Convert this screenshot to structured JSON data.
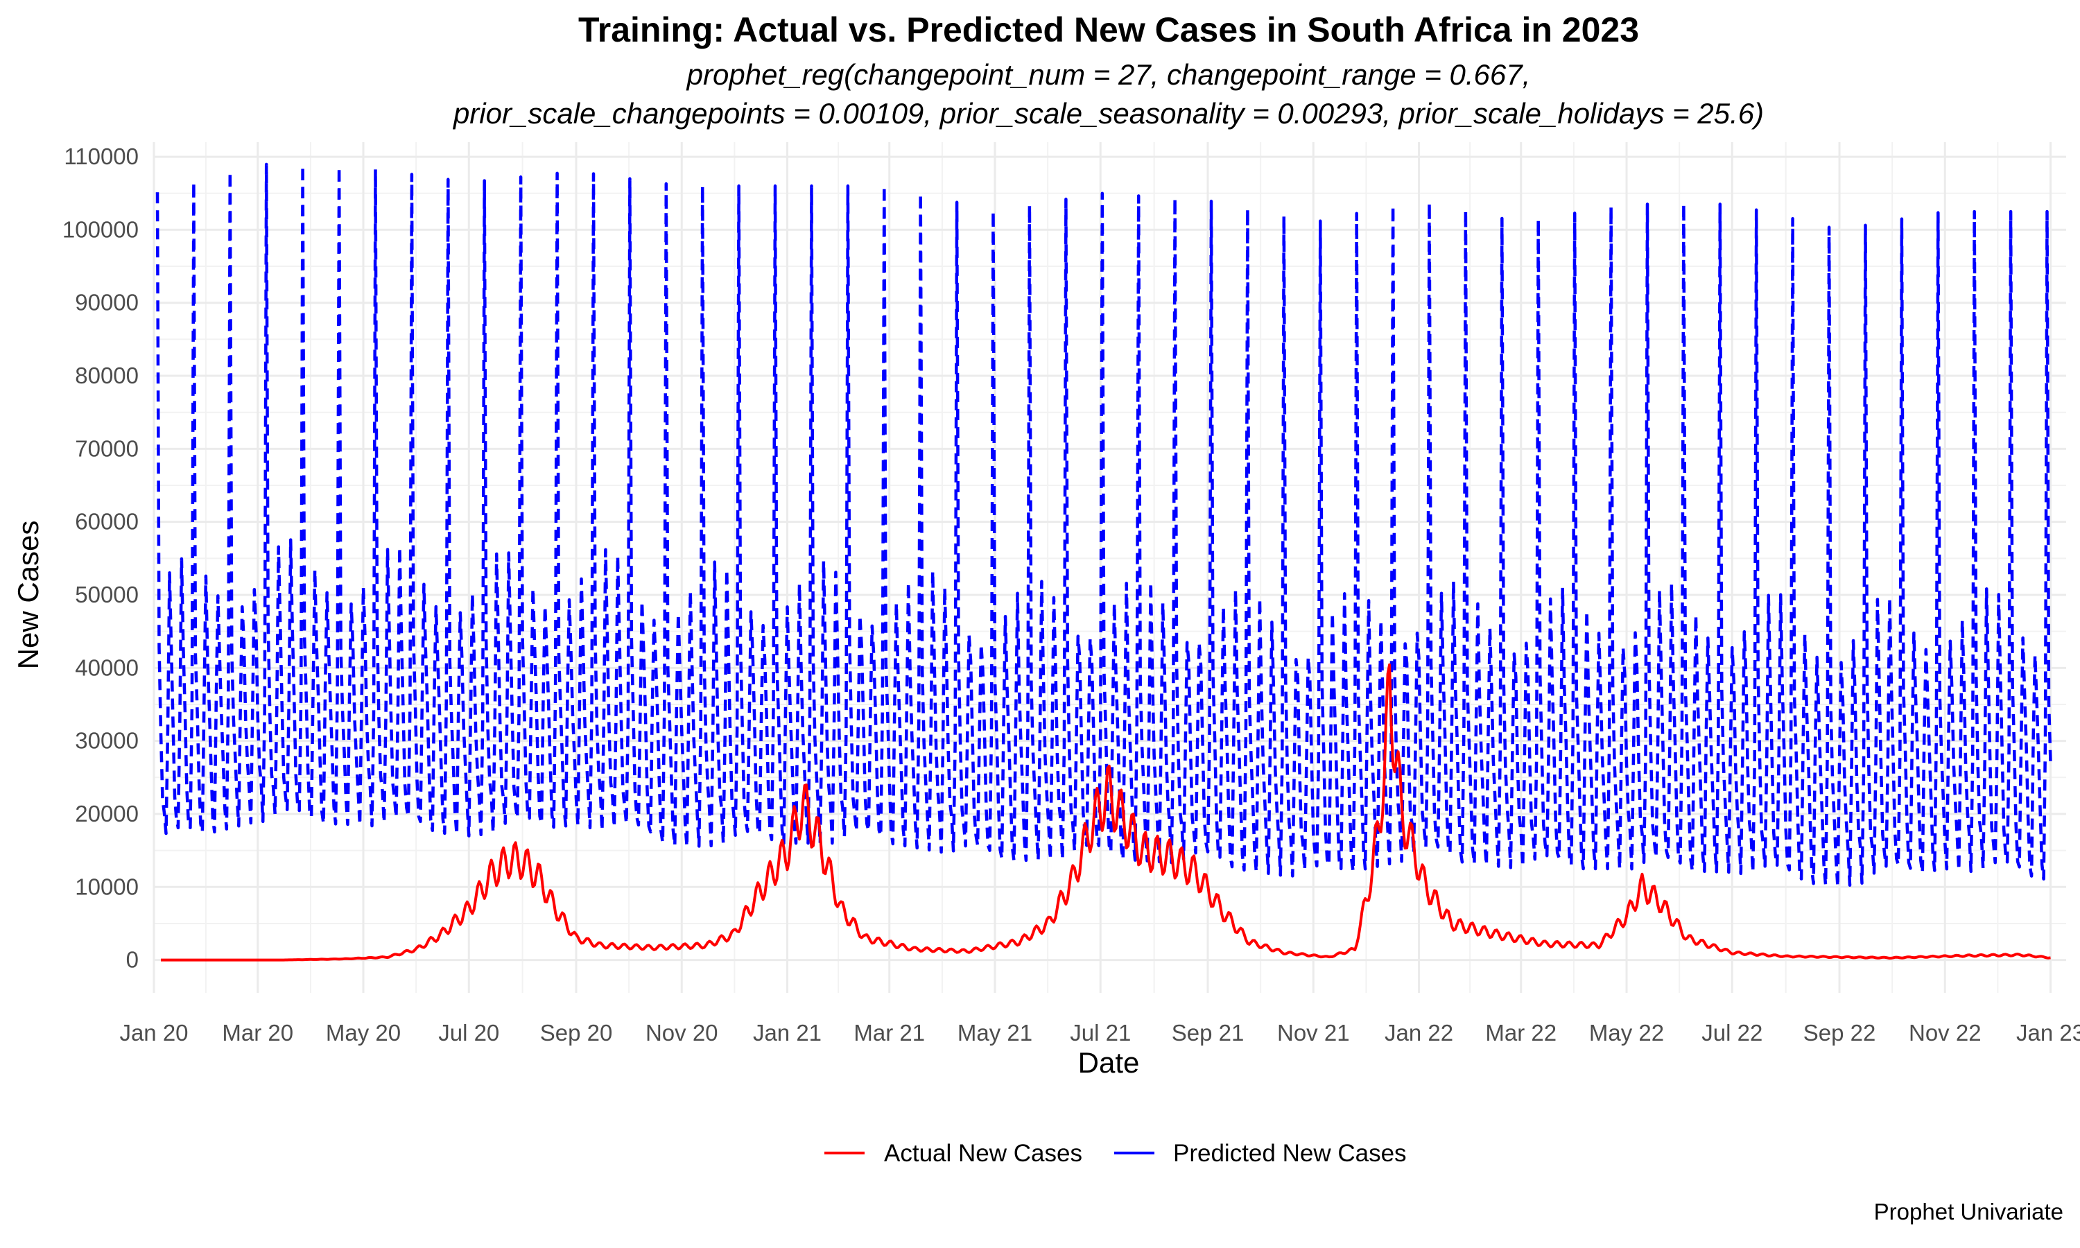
{
  "chart_data": {
    "type": "line",
    "title": "Training: Actual vs. Predicted New Cases in South Africa in 2023",
    "subtitle_lines": [
      "prophet_reg(changepoint_num = 27, changepoint_range = 0.667,",
      "prior_scale_changepoints = 0.00109, prior_scale_seasonality = 0.00293, prior_scale_holidays = 25.6)"
    ],
    "xlabel": "Date",
    "ylabel": "New Cases",
    "caption": "Prophet Univariate",
    "x_range": [
      "2020-01-01",
      "2023-01-10"
    ],
    "ylim": [
      -4500,
      112000
    ],
    "y_ticks": [
      0,
      10000,
      20000,
      30000,
      40000,
      50000,
      60000,
      70000,
      80000,
      90000,
      100000,
      110000
    ],
    "y_tick_labels": [
      "0",
      "10000",
      "20000",
      "30000",
      "40000",
      "50000",
      "60000",
      "70000",
      "80000",
      "90000",
      "100000",
      "110000"
    ],
    "x_ticks": [
      "2020-01-01",
      "2020-03-01",
      "2020-05-01",
      "2020-07-01",
      "2020-09-01",
      "2020-11-01",
      "2021-01-01",
      "2021-03-01",
      "2021-05-01",
      "2021-07-01",
      "2021-09-01",
      "2021-11-01",
      "2022-01-01",
      "2022-03-01",
      "2022-05-01",
      "2022-07-01",
      "2022-09-01",
      "2022-11-01",
      "2023-01-01"
    ],
    "x_tick_labels": [
      "Jan 20",
      "Mar 20",
      "May 20",
      "Jul 20",
      "Sep 20",
      "Nov 20",
      "Jan 21",
      "Mar 21",
      "May 21",
      "Jul 21",
      "Sep 21",
      "Nov 21",
      "Jan 22",
      "Mar 22",
      "May 22",
      "Jul 22",
      "Sep 22",
      "Nov 22",
      "Jan 23"
    ],
    "grid": true,
    "legend_position": "bottom",
    "series": [
      {
        "name": "Actual New Cases",
        "color": "#ff0000",
        "line_style": "solid",
        "points": [
          [
            "2020-01-05",
            0
          ],
          [
            "2020-03-15",
            0
          ],
          [
            "2020-04-20",
            150
          ],
          [
            "2020-05-15",
            400
          ],
          [
            "2020-06-01",
            1500
          ],
          [
            "2020-06-15",
            3500
          ],
          [
            "2020-07-01",
            7000
          ],
          [
            "2020-07-15",
            12000
          ],
          [
            "2020-07-25",
            13800
          ],
          [
            "2020-08-01",
            13500
          ],
          [
            "2020-08-10",
            11500
          ],
          [
            "2020-08-20",
            7000
          ],
          [
            "2020-09-01",
            3000
          ],
          [
            "2020-09-15",
            2000
          ],
          [
            "2020-10-15",
            1700
          ],
          [
            "2020-11-15",
            2000
          ],
          [
            "2020-12-01",
            3500
          ],
          [
            "2020-12-15",
            9000
          ],
          [
            "2021-01-01",
            15000
          ],
          [
            "2021-01-10",
            21500
          ],
          [
            "2021-01-20",
            16000
          ],
          [
            "2021-02-01",
            7000
          ],
          [
            "2021-02-15",
            3000
          ],
          [
            "2021-03-15",
            1500
          ],
          [
            "2021-04-15",
            1200
          ],
          [
            "2021-05-15",
            2500
          ],
          [
            "2021-06-01",
            5000
          ],
          [
            "2021-06-15",
            11000
          ],
          [
            "2021-06-25",
            18000
          ],
          [
            "2021-07-05",
            23000
          ],
          [
            "2021-07-15",
            19000
          ],
          [
            "2021-07-25",
            15000
          ],
          [
            "2021-08-10",
            14000
          ],
          [
            "2021-08-25",
            12000
          ],
          [
            "2021-09-10",
            6500
          ],
          [
            "2021-09-25",
            2500
          ],
          [
            "2021-10-15",
            1000
          ],
          [
            "2021-11-10",
            400
          ],
          [
            "2021-11-25",
            1500
          ],
          [
            "2021-12-05",
            12000
          ],
          [
            "2021-12-12",
            25000
          ],
          [
            "2021-12-15",
            37500
          ],
          [
            "2021-12-22",
            20000
          ],
          [
            "2022-01-05",
            10000
          ],
          [
            "2022-01-20",
            5000
          ],
          [
            "2022-02-15",
            3500
          ],
          [
            "2022-03-15",
            2200
          ],
          [
            "2022-04-15",
            2000
          ],
          [
            "2022-05-01",
            6000
          ],
          [
            "2022-05-10",
            10000
          ],
          [
            "2022-05-20",
            8000
          ],
          [
            "2022-06-05",
            3000
          ],
          [
            "2022-07-01",
            1000
          ],
          [
            "2022-08-01",
            500
          ],
          [
            "2022-10-01",
            300
          ],
          [
            "2022-11-15",
            600
          ],
          [
            "2022-12-15",
            700
          ],
          [
            "2023-01-01",
            300
          ]
        ]
      },
      {
        "name": "Predicted New Cases",
        "color": "#0000ff",
        "line_style": "dashed",
        "envelope": [
          [
            "2020-01-01",
            15500,
            105000
          ],
          [
            "2020-03-01",
            19000,
            109000
          ],
          [
            "2020-05-01",
            18500,
            108500
          ],
          [
            "2020-07-01",
            17000,
            106500
          ],
          [
            "2020-09-01",
            18500,
            108000
          ],
          [
            "2020-11-01",
            15500,
            106000
          ],
          [
            "2021-01-01",
            16000,
            106000
          ],
          [
            "2021-03-01",
            16000,
            106000
          ],
          [
            "2021-05-01",
            13500,
            102500
          ],
          [
            "2021-07-01",
            14000,
            105000
          ],
          [
            "2021-09-01",
            13000,
            104000
          ],
          [
            "2021-11-01",
            11000,
            101000
          ],
          [
            "2022-01-01",
            14000,
            104000
          ],
          [
            "2022-03-01",
            12500,
            101000
          ],
          [
            "2022-05-01",
            12500,
            103500
          ],
          [
            "2022-07-01",
            12000,
            103500
          ],
          [
            "2022-09-01",
            10000,
            100000
          ],
          [
            "2022-11-01",
            12500,
            102500
          ],
          [
            "2023-01-01",
            11000,
            102500
          ]
        ]
      }
    ]
  }
}
